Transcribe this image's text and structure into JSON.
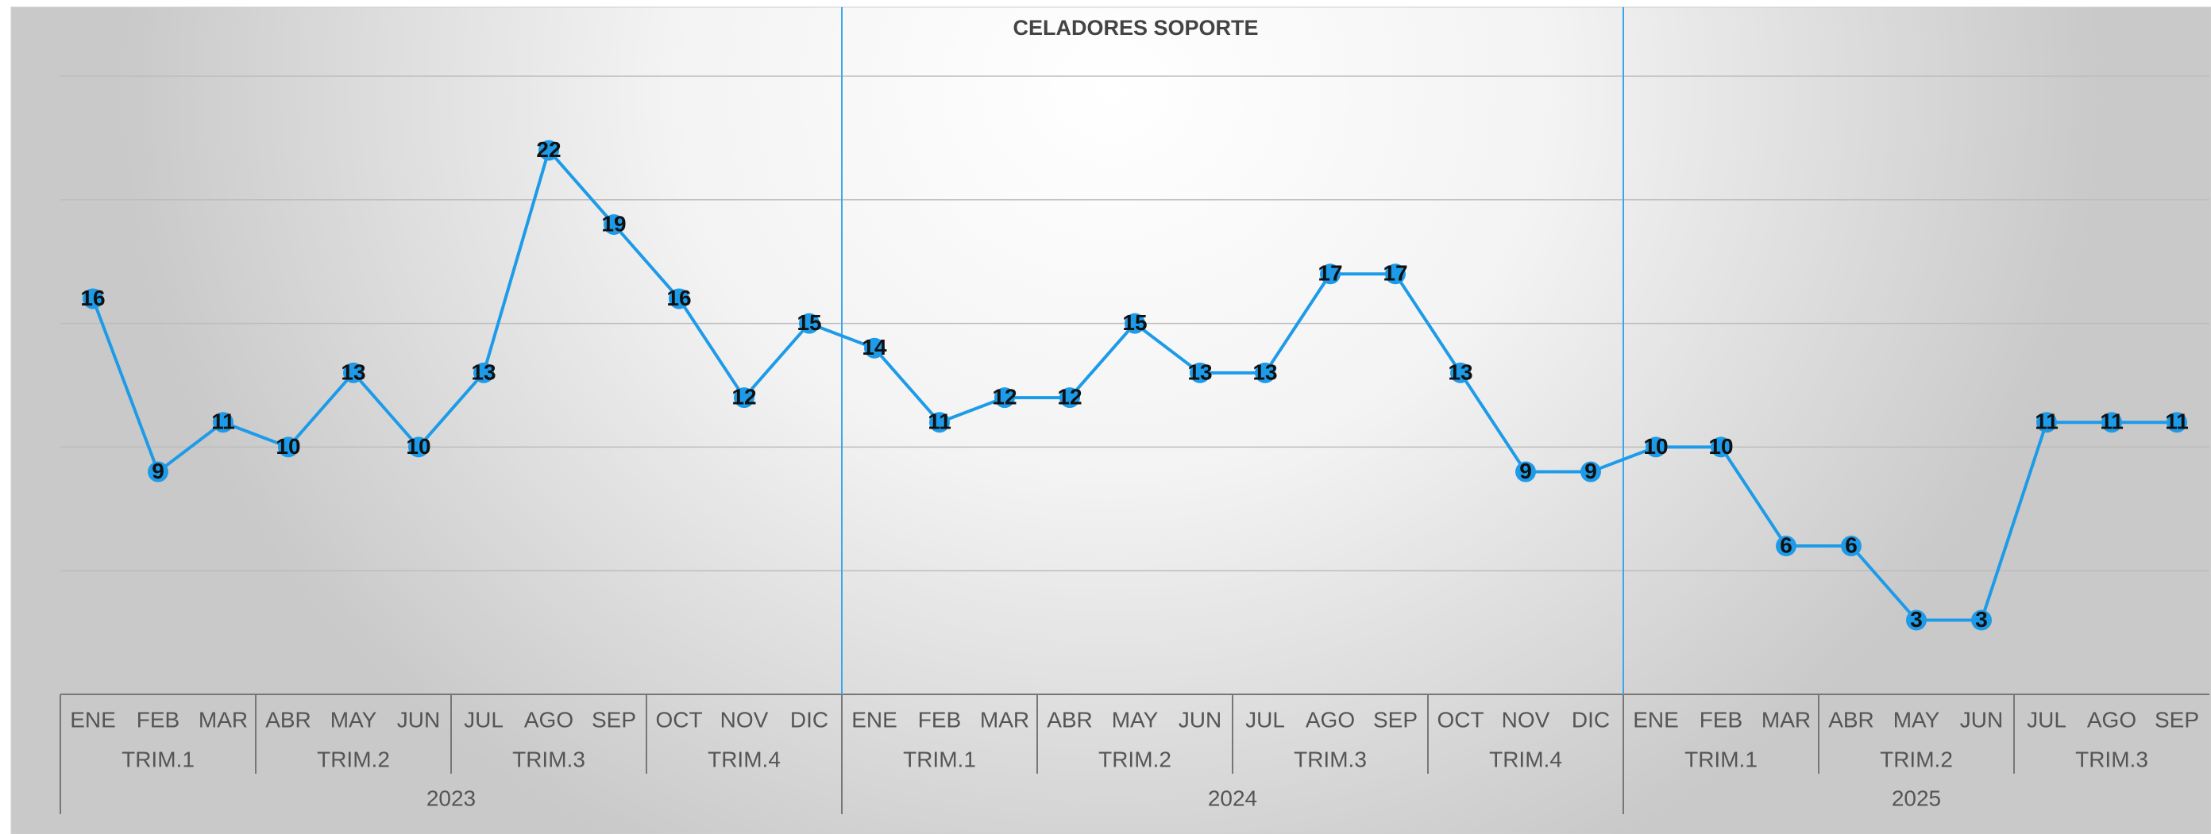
{
  "chart_data": {
    "type": "line",
    "title": "CELADORES SOPORTE",
    "categories": [
      "ENE",
      "FEB",
      "MAR",
      "ABR",
      "MAY",
      "JUN",
      "JUL",
      "AGO",
      "SEP",
      "OCT",
      "NOV",
      "DIC",
      "ENE",
      "FEB",
      "MAR",
      "ABR",
      "MAY",
      "JUN",
      "JUL",
      "AGO",
      "SEP",
      "OCT",
      "NOV",
      "DIC",
      "ENE",
      "FEB",
      "MAR",
      "ABR",
      "MAY",
      "JUN",
      "JUL",
      "AGO",
      "SEP"
    ],
    "quarters": [
      "TRIM.1",
      "TRIM.2",
      "TRIM.3",
      "TRIM.4",
      "TRIM.1",
      "TRIM.2",
      "TRIM.3",
      "TRIM.4",
      "TRIM.1",
      "TRIM.2",
      "TRIM.3"
    ],
    "years": [
      "2023",
      "2024",
      "2025"
    ],
    "series": [
      {
        "name": "CELADORES SOPORTE",
        "color": "#1e9be8",
        "values": [
          16,
          9,
          11,
          10,
          13,
          10,
          13,
          22,
          19,
          16,
          12,
          15,
          14,
          11,
          12,
          12,
          15,
          13,
          13,
          17,
          17,
          13,
          9,
          9,
          10,
          10,
          6,
          6,
          3,
          3,
          11,
          11,
          11
        ]
      }
    ],
    "ylim": [
      0,
      25
    ],
    "yticks": [
      0,
      5,
      10,
      15,
      20,
      25
    ],
    "grid": true
  }
}
